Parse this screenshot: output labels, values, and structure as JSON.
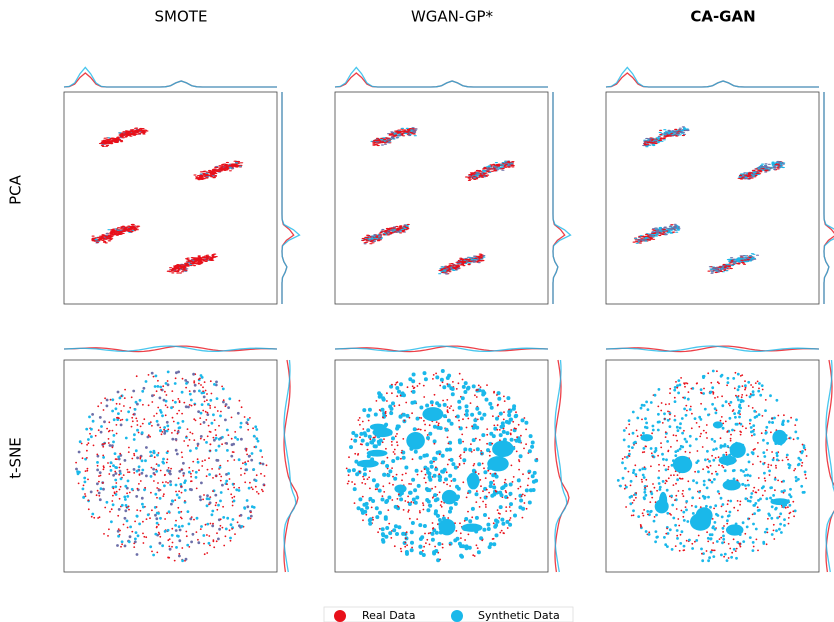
{
  "columns": [
    "SMOTE",
    "WGAN-GP*",
    "CA-GAN"
  ],
  "rows": [
    "PCA",
    "t-SNE"
  ],
  "legend": [
    "Real Data",
    "Synthetic Data"
  ]
}
